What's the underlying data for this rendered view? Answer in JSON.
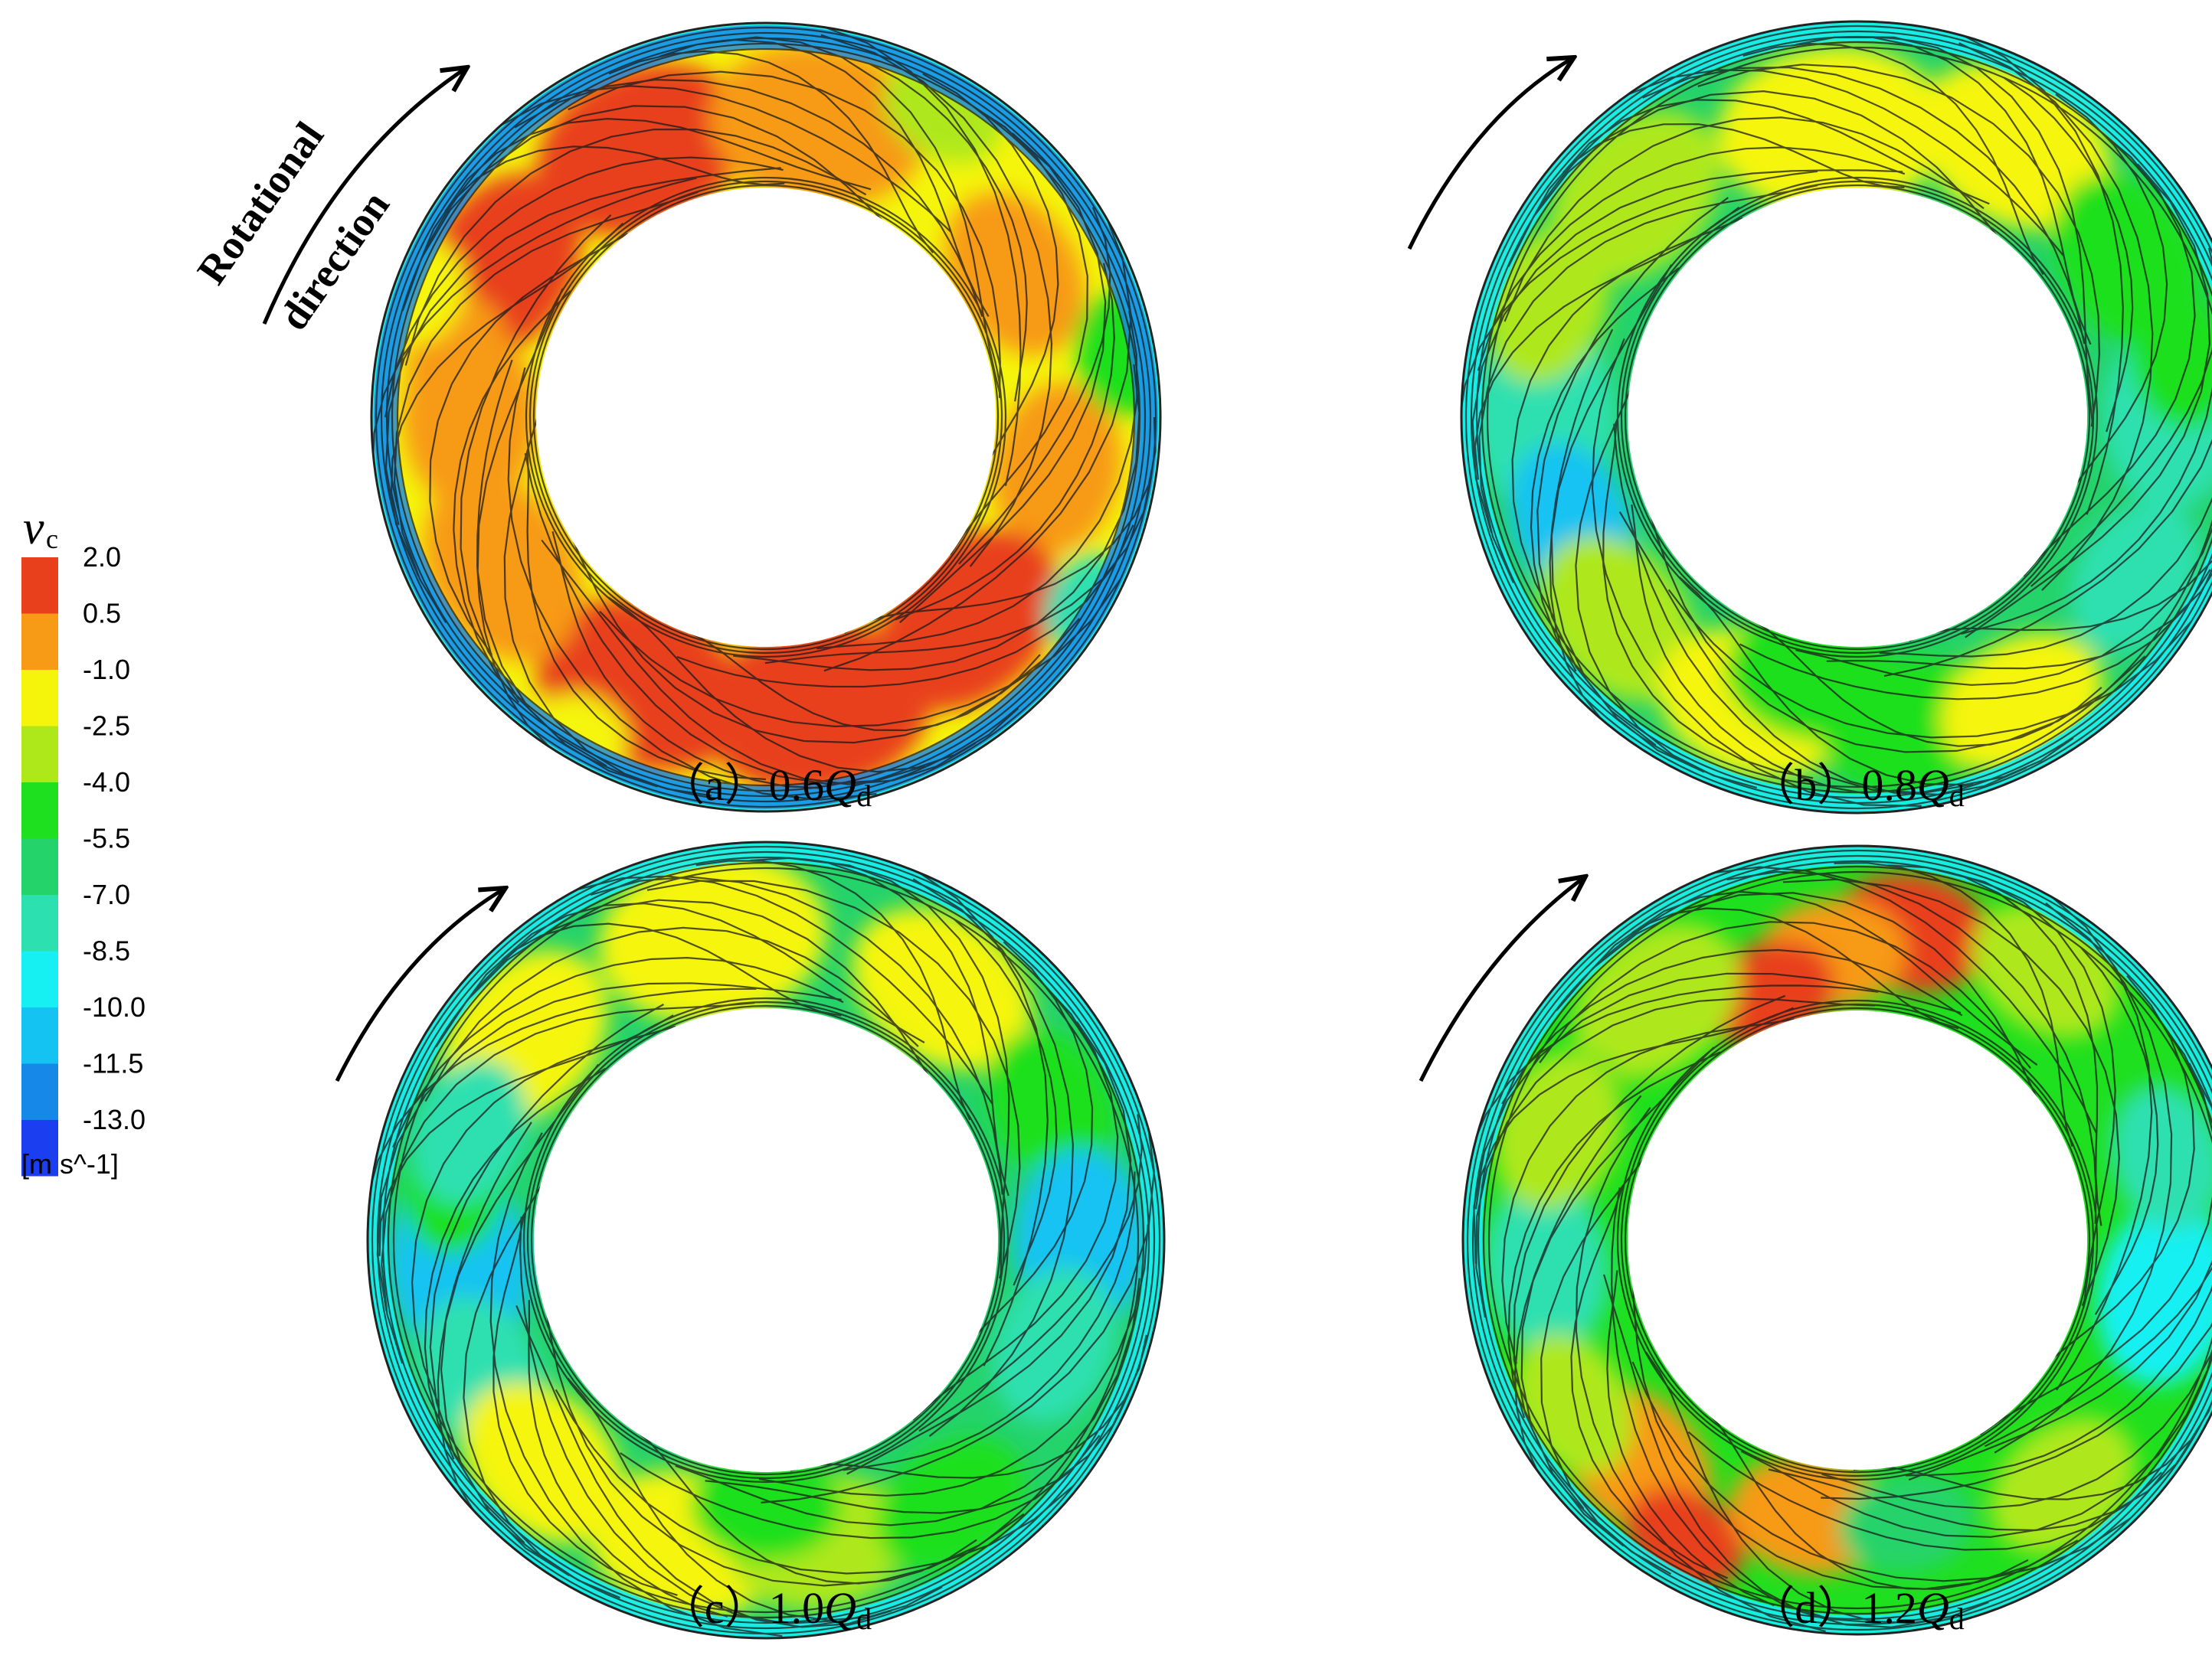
{
  "legend": {
    "symbol": "v",
    "subscript": "c",
    "unit": "[m s^-1]",
    "ticks": [
      "2.0",
      "0.5",
      "-1.0",
      "-2.5",
      "-4.0",
      "-5.5",
      "-7.0",
      "-8.5",
      "-10.0",
      "-11.5",
      "-13.0"
    ],
    "bands": [
      "#e8401c",
      "#f79a15",
      "#f5f50c",
      "#aee81a",
      "#1fe01f",
      "#25d36b",
      "#2de0b0",
      "#16f0f2",
      "#14c3f2",
      "#1688e8",
      "#1a3ef0"
    ]
  },
  "rotation_label": {
    "line1": "Rotational",
    "line2": "direction"
  },
  "panels": [
    {
      "tag": "（a）",
      "flow": "0.6",
      "Q": "Q",
      "sub": "d"
    },
    {
      "tag": "（b）",
      "flow": "0.8",
      "Q": "Q",
      "sub": "d"
    },
    {
      "tag": "（c）",
      "flow": "1.0",
      "Q": "Q",
      "sub": "d"
    },
    {
      "tag": "（d）",
      "flow": "1.2",
      "Q": "Q",
      "sub": "d"
    }
  ]
}
